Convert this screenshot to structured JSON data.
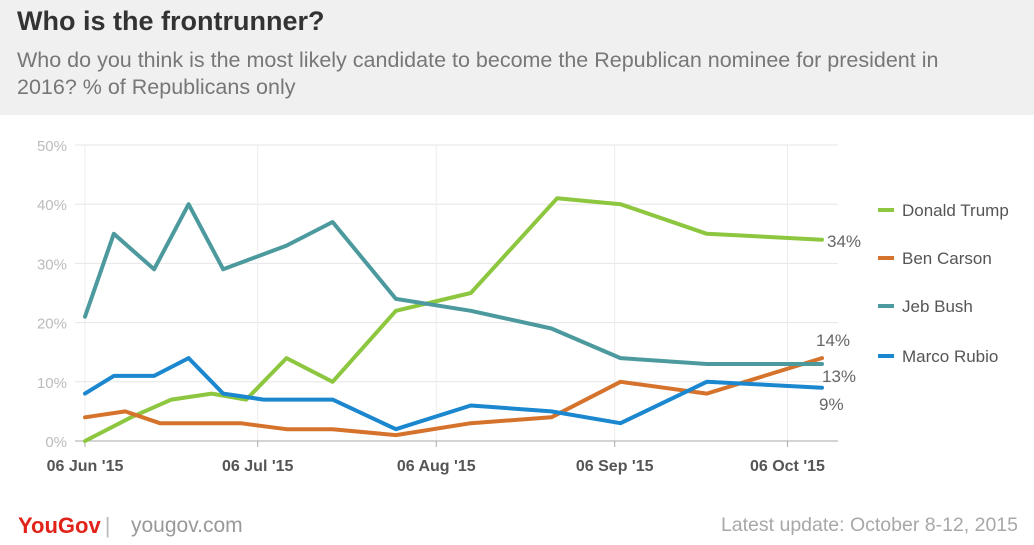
{
  "header": {
    "title": "Who is the frontrunner?",
    "subtitle": "Who do you think is the most likely candidate to become the Republican nominee for president in 2016? % of Republicans only"
  },
  "footer": {
    "brand": "YouGov",
    "site": "yougov.com",
    "update": "Latest update: October 8-12, 2015"
  },
  "chart_data": {
    "type": "line",
    "ylim": [
      0,
      50
    ],
    "yticks": [
      "0%",
      "10%",
      "20%",
      "30%",
      "40%",
      "50%"
    ],
    "xticks": [
      "06 Jun '15",
      "06 Jul '15",
      "06 Aug '15",
      "06 Sep '15",
      "06 Oct '15"
    ],
    "x": [
      "2015-06-06",
      "2015-06-13",
      "2015-06-20",
      "2015-06-27",
      "2015-07-04",
      "2015-07-11",
      "2015-07-18",
      "2015-07-25",
      "2015-08-04",
      "2015-08-17",
      "2015-08-27",
      "2015-09-07",
      "2015-09-18",
      "2015-09-30",
      "2015-10-12"
    ],
    "grid": true,
    "legend_position": "right",
    "series": [
      {
        "name": "Donald Trump",
        "color": "#8dc63f",
        "values": [
          0,
          4,
          7,
          8,
          7,
          14,
          10,
          22,
          25,
          41,
          40,
          35,
          34
        ],
        "x": [
          "2015-06-06",
          "2015-06-14",
          "2015-06-21",
          "2015-06-28",
          "2015-07-04",
          "2015-07-11",
          "2015-07-19",
          "2015-07-30",
          "2015-08-12",
          "2015-08-27",
          "2015-09-07",
          "2015-09-22",
          "2015-10-12"
        ],
        "end_label": "34%"
      },
      {
        "name": "Ben Carson",
        "color": "#d5732c",
        "values": [
          4,
          5,
          3,
          3,
          3,
          2,
          2,
          1,
          3,
          4,
          10,
          8,
          14
        ],
        "x": [
          "2015-06-06",
          "2015-06-13",
          "2015-06-19",
          "2015-06-26",
          "2015-07-03",
          "2015-07-11",
          "2015-07-19",
          "2015-07-30",
          "2015-08-12",
          "2015-08-26",
          "2015-09-07",
          "2015-09-22",
          "2015-10-12"
        ],
        "end_label": "14%"
      },
      {
        "name": "Jeb Bush",
        "color": "#4c9a9e",
        "values": [
          21,
          35,
          29,
          40,
          29,
          33,
          37,
          24,
          22,
          19,
          14,
          13,
          13
        ],
        "x": [
          "2015-06-06",
          "2015-06-11",
          "2015-06-18",
          "2015-06-24",
          "2015-06-30",
          "2015-07-11",
          "2015-07-19",
          "2015-07-30",
          "2015-08-12",
          "2015-08-26",
          "2015-09-07",
          "2015-09-22",
          "2015-10-12"
        ],
        "end_label": "13%"
      },
      {
        "name": "Marco Rubio",
        "color": "#1a87cf",
        "values": [
          8,
          11,
          11,
          14,
          8,
          7,
          7,
          2,
          6,
          5,
          3,
          10,
          9
        ],
        "x": [
          "2015-06-06",
          "2015-06-11",
          "2015-06-18",
          "2015-06-24",
          "2015-06-30",
          "2015-07-07",
          "2015-07-19",
          "2015-07-30",
          "2015-08-12",
          "2015-08-26",
          "2015-09-07",
          "2015-09-22",
          "2015-10-12"
        ],
        "end_label": "9%"
      }
    ]
  }
}
